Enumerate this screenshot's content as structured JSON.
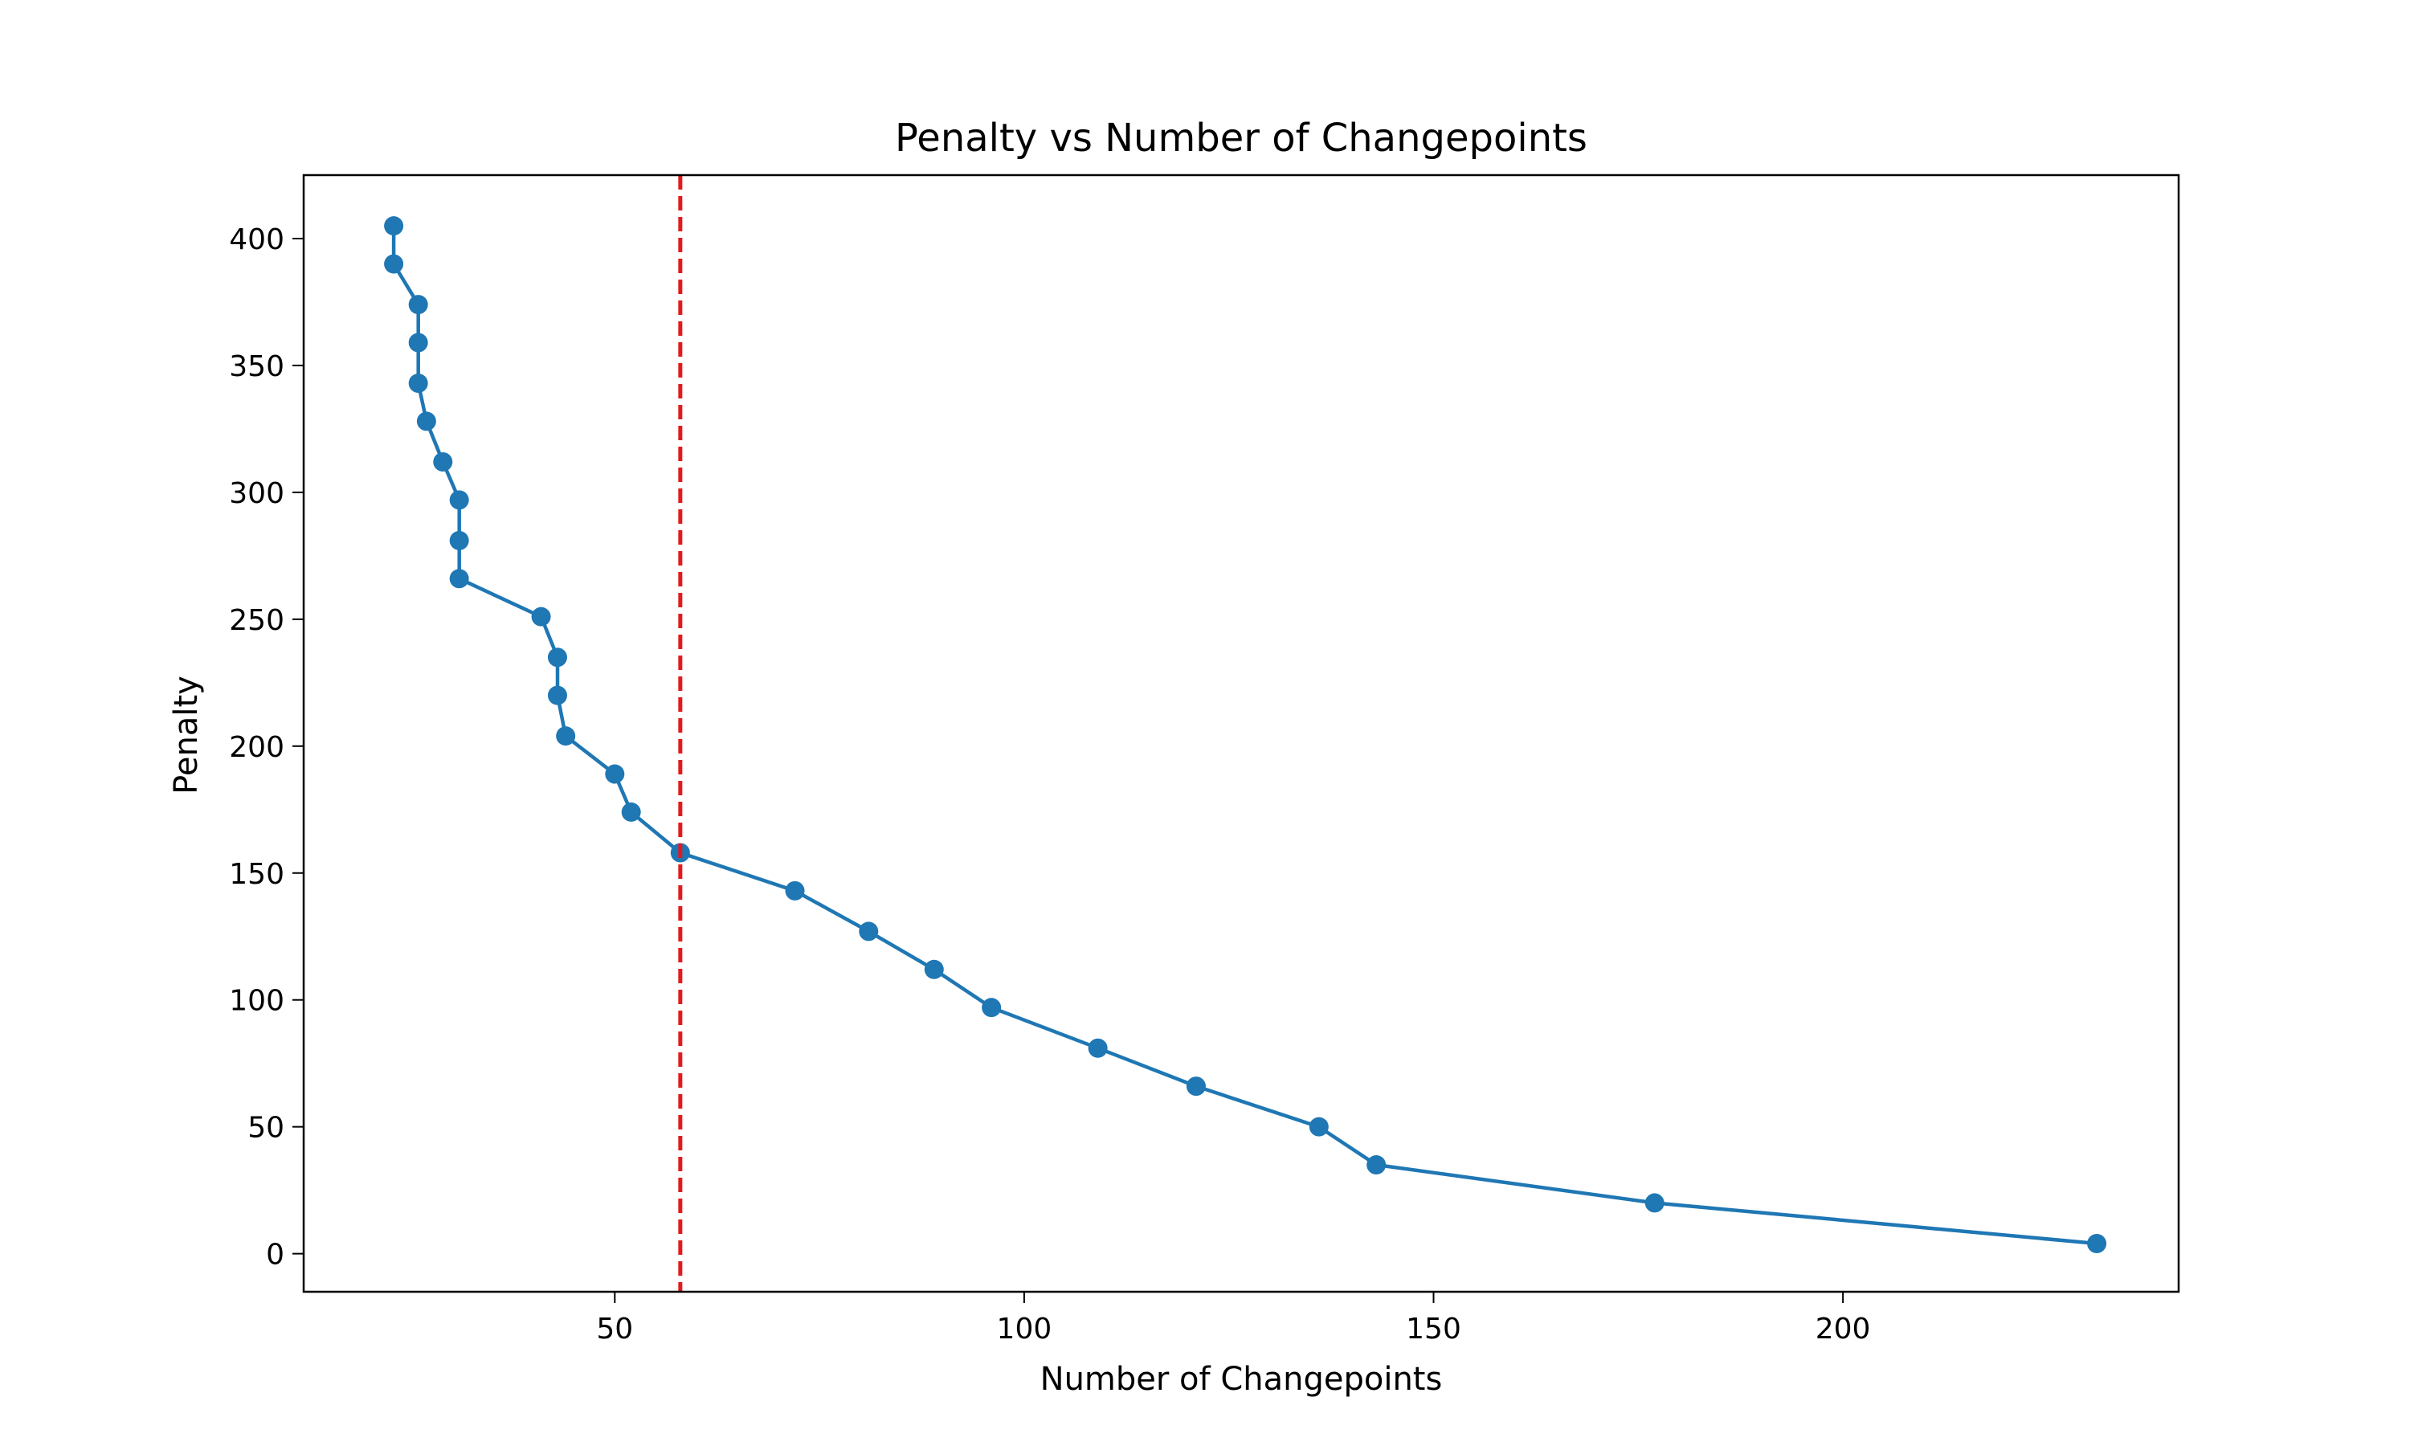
{
  "chart_data": {
    "type": "line",
    "title": "Penalty vs Number of Changepoints",
    "xlabel": "Number of Changepoints",
    "ylabel": "Penalty",
    "xlim": [
      12,
      241
    ],
    "ylim": [
      -15,
      425
    ],
    "xticks": [
      50,
      100,
      150,
      200
    ],
    "yticks": [
      0,
      50,
      100,
      150,
      200,
      250,
      300,
      350,
      400
    ],
    "grid": false,
    "legend": "none",
    "series": [
      {
        "color": "#1f77b4",
        "marker": "circle",
        "points": [
          {
            "x": 23,
            "y": 405
          },
          {
            "x": 23,
            "y": 390
          },
          {
            "x": 26,
            "y": 374
          },
          {
            "x": 26,
            "y": 359
          },
          {
            "x": 26,
            "y": 343
          },
          {
            "x": 27,
            "y": 328
          },
          {
            "x": 29,
            "y": 312
          },
          {
            "x": 31,
            "y": 297
          },
          {
            "x": 31,
            "y": 281
          },
          {
            "x": 31,
            "y": 266
          },
          {
            "x": 41,
            "y": 251
          },
          {
            "x": 43,
            "y": 235
          },
          {
            "x": 43,
            "y": 220
          },
          {
            "x": 44,
            "y": 204
          },
          {
            "x": 50,
            "y": 189
          },
          {
            "x": 52,
            "y": 174
          },
          {
            "x": 58,
            "y": 158
          },
          {
            "x": 72,
            "y": 143
          },
          {
            "x": 81,
            "y": 127
          },
          {
            "x": 89,
            "y": 112
          },
          {
            "x": 96,
            "y": 97
          },
          {
            "x": 109,
            "y": 81
          },
          {
            "x": 121,
            "y": 66
          },
          {
            "x": 136,
            "y": 50
          },
          {
            "x": 143,
            "y": 35
          },
          {
            "x": 177,
            "y": 20
          },
          {
            "x": 231,
            "y": 4
          }
        ]
      }
    ],
    "reference_line": {
      "orientation": "vertical",
      "x": 58,
      "color": "#e31a1c",
      "style": "dashed"
    }
  }
}
